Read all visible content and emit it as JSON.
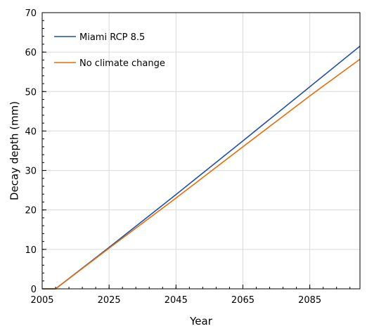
{
  "chart_data": {
    "type": "line",
    "title": "",
    "xlabel": "Year",
    "ylabel": "Decay depth (mm)",
    "xlim": [
      2005,
      2100
    ],
    "ylim": [
      0,
      70
    ],
    "xticks": [
      2005,
      2025,
      2045,
      2065,
      2085
    ],
    "yticks": [
      0,
      10,
      20,
      30,
      40,
      50,
      60,
      70
    ],
    "x_minor_step": 4,
    "y_minor_step": 2,
    "grid": true,
    "legend_position": "top-left",
    "series": [
      {
        "name": "Miami RCP 8.5",
        "color": "#1f4fa8",
        "points": [
          [
            2005,
            0
          ],
          [
            2009,
            0
          ],
          [
            2025,
            10.5
          ],
          [
            2045,
            23.9
          ],
          [
            2065,
            37.5
          ],
          [
            2085,
            51.2
          ],
          [
            2100,
            61.5
          ]
        ]
      },
      {
        "name": "No climate change",
        "color": "#e46c0a",
        "points": [
          [
            2005,
            0
          ],
          [
            2009,
            0
          ],
          [
            2025,
            10.3
          ],
          [
            2045,
            23.0
          ],
          [
            2065,
            36.0
          ],
          [
            2085,
            48.9
          ],
          [
            2100,
            58.2
          ]
        ]
      }
    ]
  }
}
